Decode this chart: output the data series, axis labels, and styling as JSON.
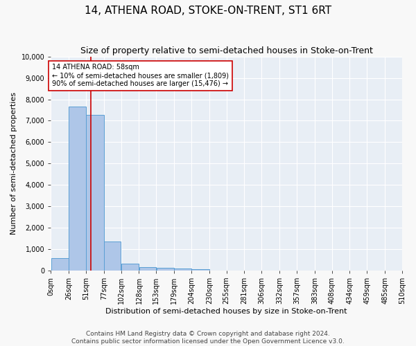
{
  "title": "14, ATHENA ROAD, STOKE-ON-TRENT, ST1 6RT",
  "subtitle": "Size of property relative to semi-detached houses in Stoke-on-Trent",
  "xlabel": "Distribution of semi-detached houses by size in Stoke-on-Trent",
  "ylabel": "Number of semi-detached properties",
  "footer_line1": "Contains HM Land Registry data © Crown copyright and database right 2024.",
  "footer_line2": "Contains public sector information licensed under the Open Government Licence v3.0.",
  "bins": [
    0,
    26,
    51,
    77,
    102,
    128,
    153,
    179,
    204,
    230,
    255,
    281,
    306,
    332,
    357,
    383,
    408,
    434,
    459,
    485,
    510
  ],
  "bar_labels": [
    "0sqm",
    "26sqm",
    "51sqm",
    "77sqm",
    "102sqm",
    "128sqm",
    "153sqm",
    "179sqm",
    "204sqm",
    "230sqm",
    "255sqm",
    "281sqm",
    "306sqm",
    "332sqm",
    "357sqm",
    "383sqm",
    "408sqm",
    "434sqm",
    "459sqm",
    "485sqm",
    "510sqm"
  ],
  "counts": [
    570,
    7650,
    7280,
    1360,
    320,
    160,
    115,
    110,
    70,
    0,
    0,
    0,
    0,
    0,
    0,
    0,
    0,
    0,
    0,
    0
  ],
  "bar_color": "#aec6e8",
  "bar_edgecolor": "#5a9fd4",
  "vline_x": 58,
  "annotation_title": "14 ATHENA ROAD: 58sqm",
  "annotation_line2": "← 10% of semi-detached houses are smaller (1,809)",
  "annotation_line3": "90% of semi-detached houses are larger (15,476) →",
  "box_color": "#ffffff",
  "box_edgecolor": "#cc0000",
  "vline_color": "#cc0000",
  "ylim": [
    0,
    10000
  ],
  "yticks": [
    0,
    1000,
    2000,
    3000,
    4000,
    5000,
    6000,
    7000,
    8000,
    9000,
    10000
  ],
  "bg_color": "#e8eef5",
  "grid_color": "#ffffff",
  "title_fontsize": 11,
  "subtitle_fontsize": 9,
  "axis_label_fontsize": 8,
  "tick_fontsize": 7,
  "annotation_fontsize": 7,
  "footer_fontsize": 6.5
}
